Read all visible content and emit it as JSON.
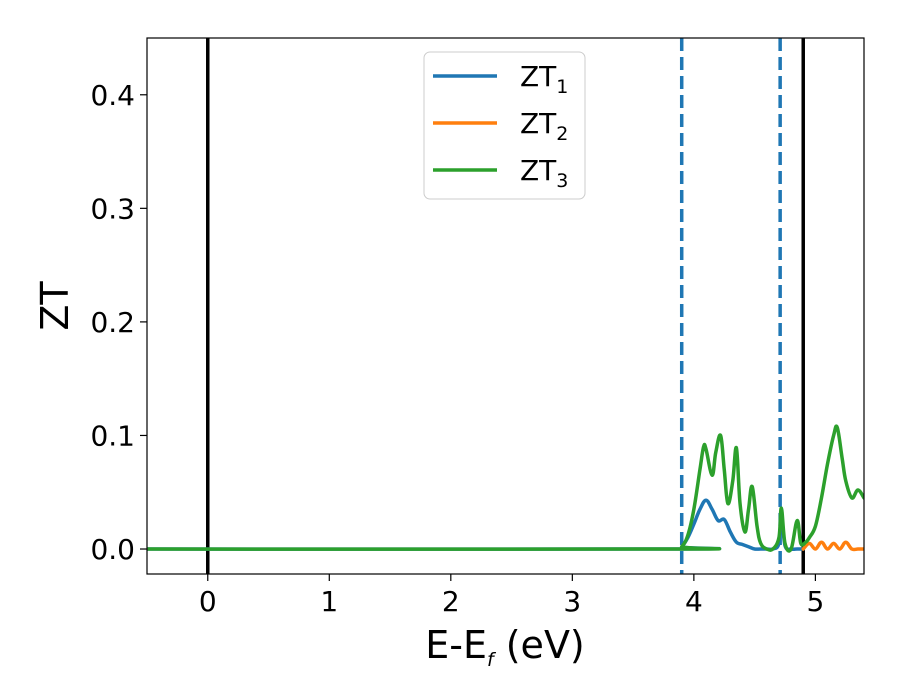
{
  "chart_data": {
    "type": "line",
    "title": "",
    "xlabel": {
      "main": "E-E",
      "sub": "f",
      "unit": " (eV)"
    },
    "ylabel": "ZT",
    "xlim": [
      -0.5,
      5.4
    ],
    "ylim": [
      -0.022,
      0.45
    ],
    "xticks": [
      0,
      1,
      2,
      3,
      4,
      5
    ],
    "xtick_labels": [
      "0",
      "1",
      "2",
      "3",
      "4",
      "5"
    ],
    "yticks": [
      0.0,
      0.1,
      0.2,
      0.3,
      0.4
    ],
    "ytick_labels": [
      "0.0",
      "0.1",
      "0.2",
      "0.3",
      "0.4"
    ],
    "grid": false,
    "legend_position": "top-center",
    "vlines": [
      {
        "x": 0.0,
        "style": "solid",
        "color": "#000000"
      },
      {
        "x": 3.9,
        "style": "dashed",
        "color": "#1f77b4"
      },
      {
        "x": 4.71,
        "style": "dashed",
        "color": "#1f77b4"
      },
      {
        "x": 4.9,
        "style": "solid",
        "color": "#000000"
      }
    ],
    "series": [
      {
        "name": "ZT",
        "sub": "1",
        "color": "#1f77b4",
        "x": [
          -0.5,
          3.85,
          3.9,
          3.95,
          4.0,
          4.05,
          4.1,
          4.15,
          4.2,
          4.25,
          4.3,
          4.35,
          4.4,
          4.45,
          4.5,
          4.55,
          4.6,
          4.65,
          4.7,
          4.72,
          4.75,
          4.8,
          4.85,
          4.9
        ],
        "y": [
          0.0,
          0.0,
          0.002,
          0.01,
          0.022,
          0.035,
          0.043,
          0.035,
          0.025,
          0.026,
          0.015,
          0.006,
          0.004,
          0.002,
          0.0,
          0.0,
          0.0,
          0.0,
          0.005,
          0.03,
          0.003,
          0.0,
          0.0,
          0.0
        ]
      },
      {
        "name": "ZT",
        "sub": "2",
        "color": "#ff7f0e",
        "x": [
          4.9,
          4.95,
          5.0,
          5.05,
          5.1,
          5.15,
          5.2,
          5.25,
          5.3,
          5.35,
          5.4
        ],
        "y": [
          0.0,
          0.005,
          0.0,
          0.006,
          0.0,
          0.005,
          0.0,
          0.006,
          0.0,
          0.0,
          0.0
        ]
      },
      {
        "name": "ZT",
        "sub": "3",
        "color": "#2ca02c",
        "x": [
          -0.5,
          3.85,
          3.9,
          3.95,
          4.0,
          4.05,
          4.08,
          4.1,
          4.15,
          4.18,
          4.22,
          4.25,
          4.28,
          4.32,
          4.35,
          4.38,
          4.42,
          4.45,
          4.48,
          4.52,
          4.55,
          4.6,
          4.65,
          4.7,
          4.72,
          4.75,
          4.8,
          4.85,
          4.88,
          4.92,
          4.95,
          5.0,
          5.05,
          5.1,
          5.15,
          5.18,
          5.22,
          5.25,
          5.3,
          5.35,
          5.4
        ],
        "y": [
          0.0,
          0.0,
          0.002,
          0.012,
          0.035,
          0.07,
          0.09,
          0.088,
          0.065,
          0.085,
          0.1,
          0.07,
          0.04,
          0.06,
          0.089,
          0.04,
          0.015,
          0.035,
          0.055,
          0.02,
          0.005,
          0.0,
          0.0,
          0.01,
          0.036,
          0.005,
          0.0,
          0.025,
          0.005,
          0.006,
          0.01,
          0.02,
          0.045,
          0.075,
          0.1,
          0.107,
          0.08,
          0.06,
          0.045,
          0.052,
          0.045
        ]
      }
    ]
  }
}
